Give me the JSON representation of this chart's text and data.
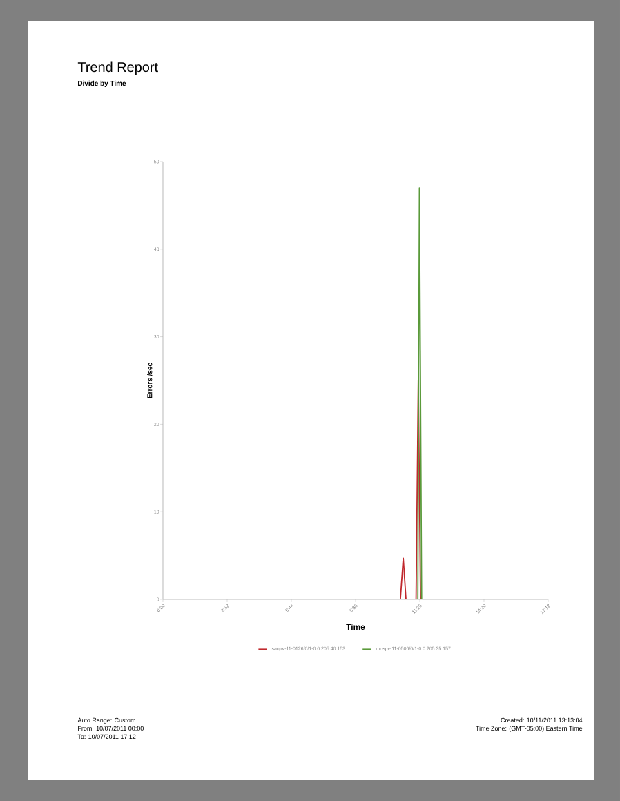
{
  "chart_data": {
    "type": "line",
    "title": "Trend Report",
    "subtitle": "Divide by Time",
    "xlabel": "Time",
    "ylabel": "Errors /sec",
    "series": [
      {
        "name": "sanjrv-11-0126/0/1-0.0.205.40.153",
        "color": "#c0282d",
        "x": [
          0,
          10.6,
          10.73,
          10.85,
          11.3,
          11.4,
          11.5,
          17.2
        ],
        "values": [
          0,
          0,
          4.7,
          0,
          0,
          25,
          0,
          0
        ]
      },
      {
        "name": "mnspv-11-0506/0/1-0.0.205.35.157",
        "color": "#5a9a3a",
        "x": [
          0,
          11.38,
          11.45,
          11.55,
          17.2
        ],
        "values": [
          0,
          0,
          47,
          0,
          0
        ]
      }
    ],
    "xlim": [
      0,
      17.2
    ],
    "ylim": [
      0,
      50
    ],
    "xticks": [
      {
        "value": 0,
        "label": "0:00"
      },
      {
        "value": 2.867,
        "label": "2:52"
      },
      {
        "value": 5.733,
        "label": "5:44"
      },
      {
        "value": 8.6,
        "label": "8:36"
      },
      {
        "value": 11.467,
        "label": "11:28"
      },
      {
        "value": 14.333,
        "label": "14:20"
      },
      {
        "value": 17.2,
        "label": "17:12"
      }
    ],
    "yticks": [
      0,
      10,
      20,
      30,
      40,
      50
    ],
    "legend": "bottom",
    "grid": false,
    "annotations": [
      "Auto Range:  Custom",
      "From:  10/07/2011 00:00",
      "To:  10/07/2011 17:12",
      "Created: 10/11/2011 13:13:04",
      "Time Zone: (GMT-05:00) Eastern Time"
    ]
  }
}
